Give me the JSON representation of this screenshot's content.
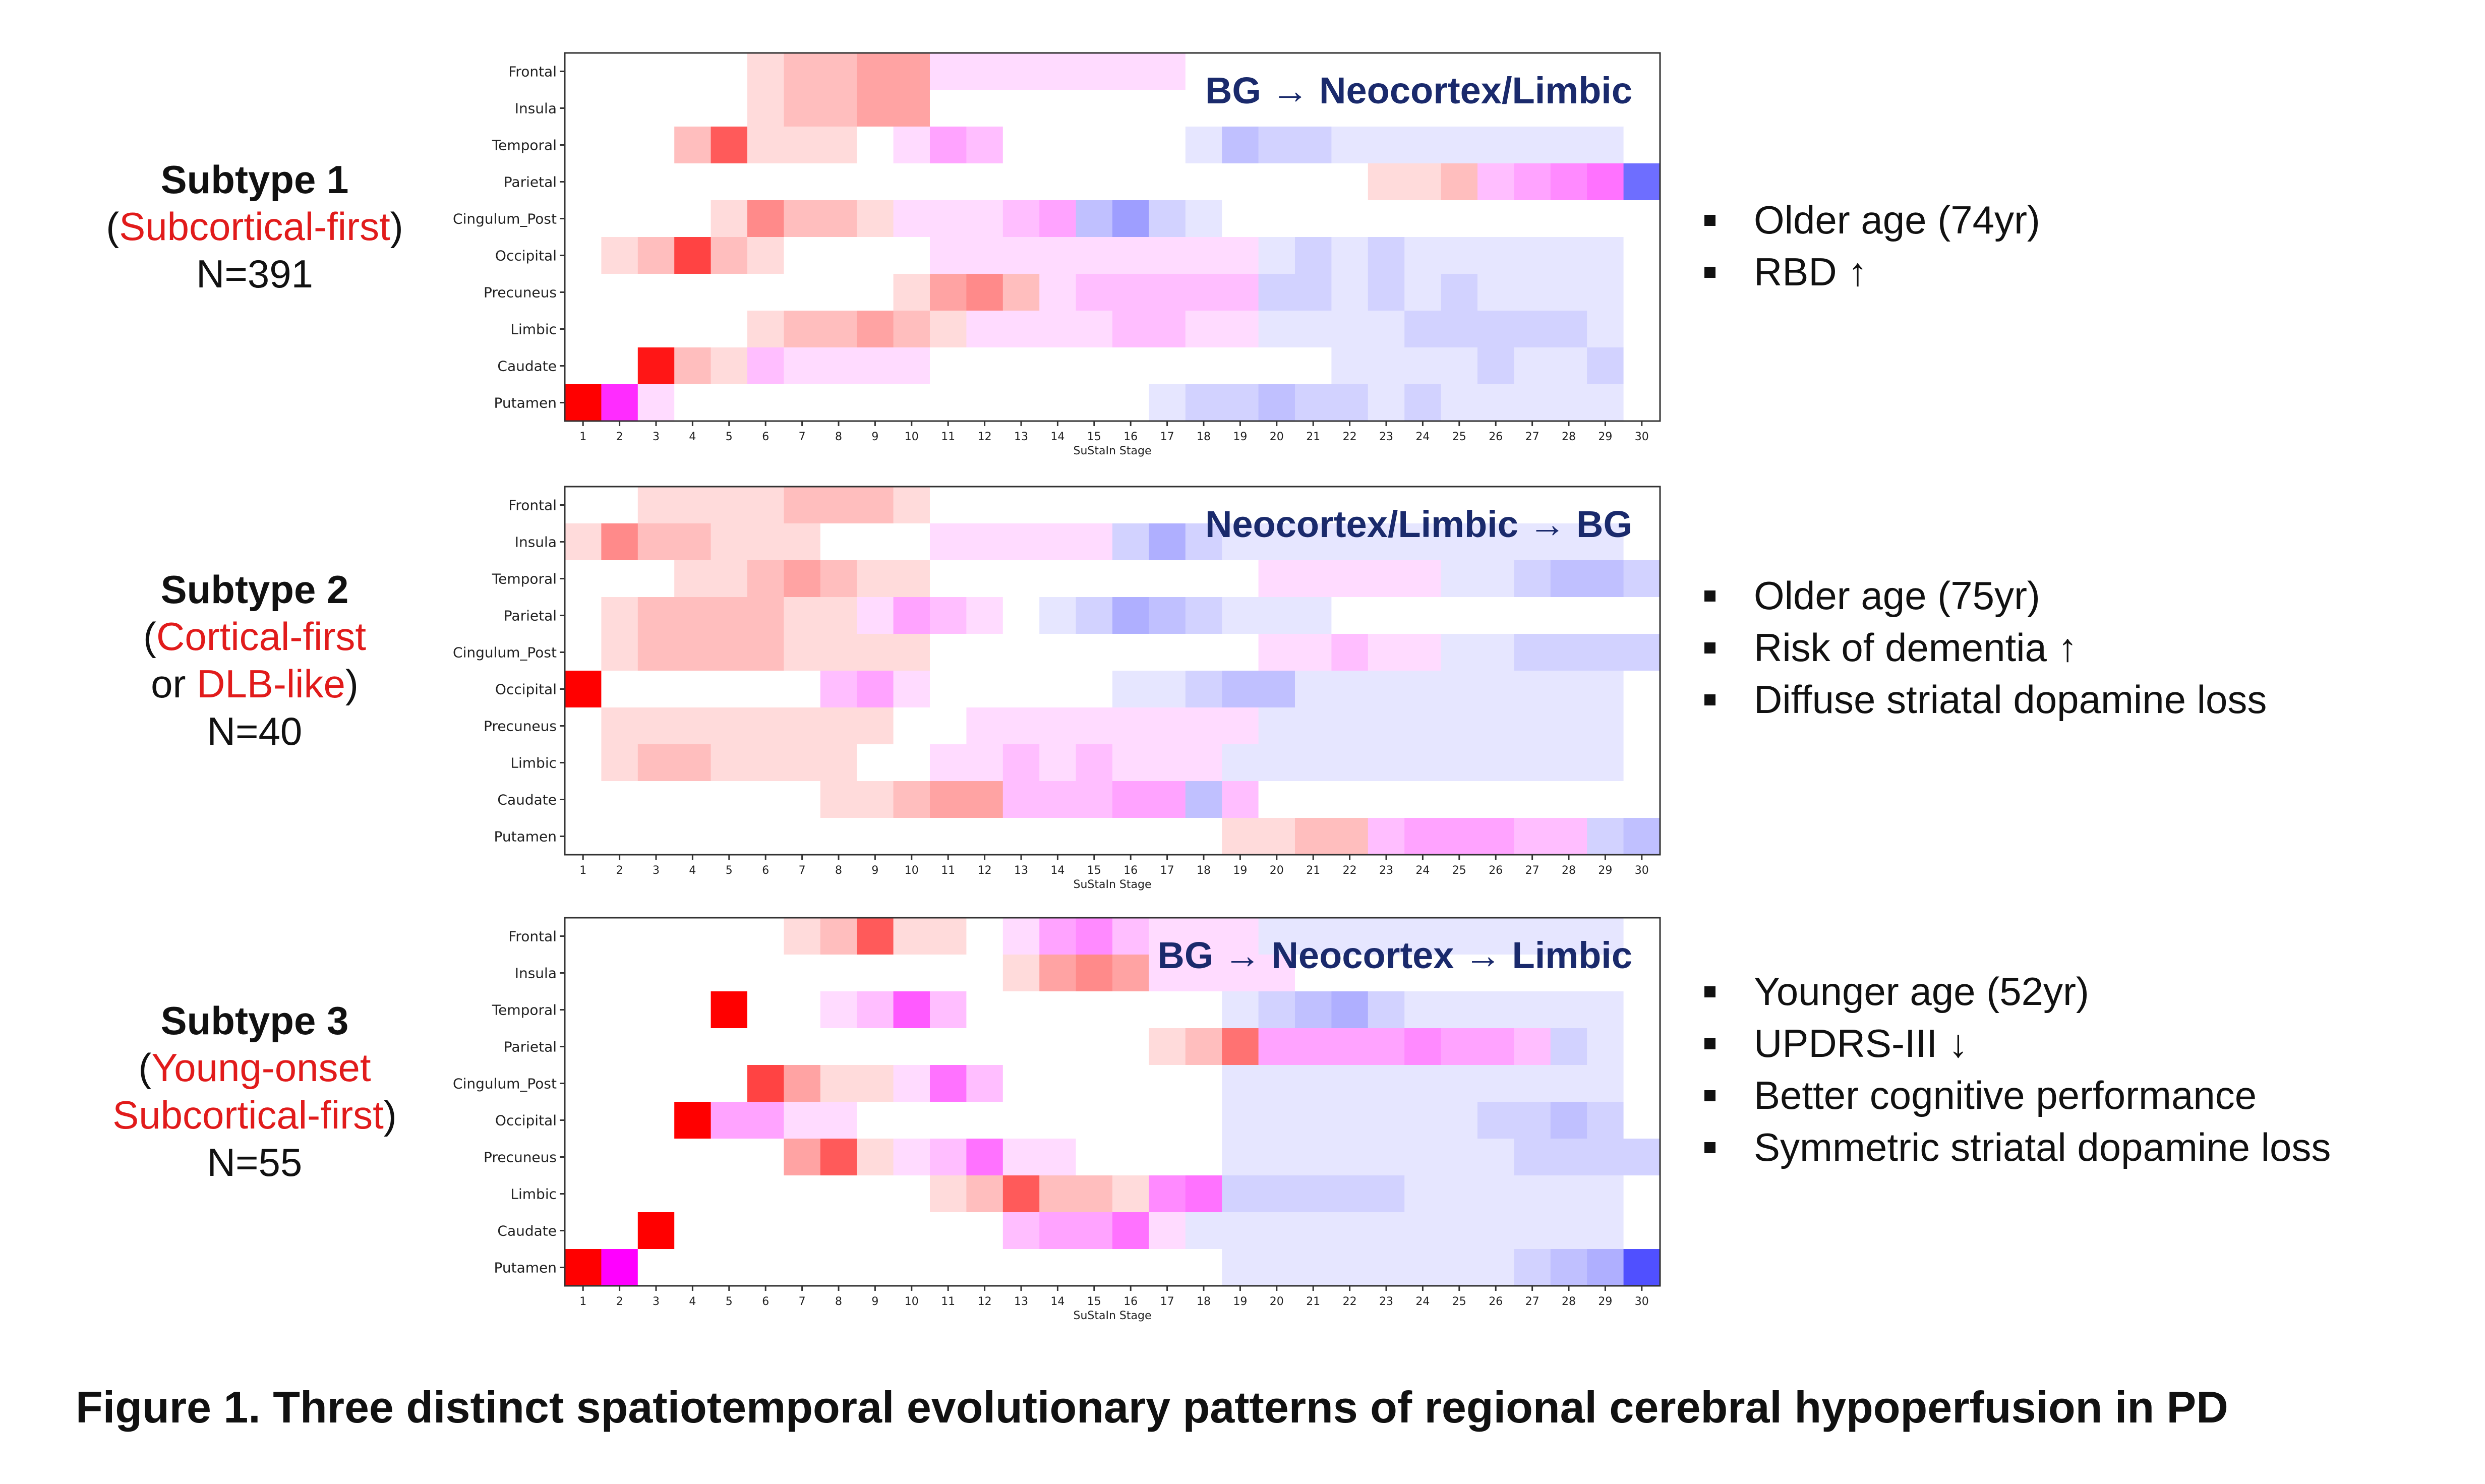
{
  "subtypes": [
    {
      "title": "Subtype 1",
      "desc_parts": [
        {
          "t": "(",
          "red": false
        },
        {
          "t": "Subcortical-first",
          "red": true
        },
        {
          "t": ")",
          "red": false
        }
      ],
      "desc_line2_parts": [],
      "n": "N=391",
      "bullets": [
        "Older age (74yr)",
        "RBD ↑"
      ]
    },
    {
      "title": "Subtype 2",
      "desc_parts": [
        {
          "t": "(",
          "red": false
        },
        {
          "t": "Cortical-first",
          "red": true
        }
      ],
      "desc_line2_parts": [
        {
          "t": "or ",
          "red": false
        },
        {
          "t": "DLB-like",
          "red": true
        },
        {
          "t": ")",
          "red": false
        }
      ],
      "n": "N=40",
      "bullets": [
        "Older age (75yr)",
        "Risk of dementia ↑",
        "Diffuse striatal dopamine loss"
      ]
    },
    {
      "title": "Subtype 3",
      "desc_parts": [
        {
          "t": "(",
          "red": false
        },
        {
          "t": "Young-onset",
          "red": true
        }
      ],
      "desc_line2_parts": [
        {
          "t": "Subcortical-first",
          "red": true
        },
        {
          "t": ")",
          "red": false
        }
      ],
      "n": "N=55",
      "bullets": [
        "Younger age (52yr)",
        "UPDRS-III ↓",
        "Better cognitive performance",
        "Symmetric striatal dopamine loss"
      ]
    }
  ],
  "caption": "Figure 1. Three distinct spatiotemporal evolutionary patterns of regional cerebral hypoperfusion in PD",
  "colors": {
    "red": "#ff0000",
    "magenta": "#ff00ff",
    "blue": "#5050ff",
    "white": "#ffffff",
    "annotation": "#1a2a6c",
    "subtype_red": "#e11b1b"
  },
  "chart_data": [
    {
      "type": "heatmap",
      "title": "BG → Neocortex/Limbic",
      "xlabel": "SuStaIn Stage",
      "ylabel": "",
      "rows": [
        "Frontal",
        "Insula",
        "Temporal",
        "Parietal",
        "Cingulum_Post",
        "Occipital",
        "Precuneus",
        "Limbic",
        "Caudate",
        "Putamen"
      ],
      "stages": [
        "1",
        "2",
        "3",
        "4",
        "5",
        "6",
        "7",
        "8",
        "9",
        "10",
        "11",
        "12",
        "13",
        "14",
        "15",
        "16",
        "17",
        "18",
        "19",
        "20",
        "21",
        "22",
        "23",
        "24",
        "25",
        "26",
        "27",
        "28",
        "29",
        "30"
      ],
      "cells": [
        [
          "W",
          "W",
          "W",
          "W",
          "W",
          "R1",
          "R2",
          "R2",
          "R3",
          "R3",
          "M1",
          "M1",
          "M1",
          "M1",
          "M1",
          "M1",
          "M1",
          "W",
          "W",
          "W",
          "W",
          "W",
          "W",
          "W",
          "W",
          "W",
          "W",
          "W",
          "W",
          "W"
        ],
        [
          "W",
          "W",
          "W",
          "W",
          "W",
          "R1",
          "R2",
          "R2",
          "R3",
          "R3",
          "W",
          "W",
          "W",
          "W",
          "W",
          "W",
          "W",
          "W",
          "W",
          "W",
          "W",
          "W",
          "W",
          "W",
          "W",
          "W",
          "W",
          "W",
          "W",
          "W"
        ],
        [
          "W",
          "W",
          "W",
          "R2",
          "R6",
          "R1",
          "R1",
          "R1",
          "W",
          "M1",
          "M3",
          "M2",
          "W",
          "W",
          "W",
          "W",
          "W",
          "B1",
          "B3",
          "B2",
          "B2",
          "B1",
          "B1",
          "B1",
          "B1",
          "B1",
          "B1",
          "B1",
          "B1",
          "W"
        ],
        [
          "W",
          "W",
          "W",
          "W",
          "W",
          "W",
          "W",
          "W",
          "W",
          "W",
          "W",
          "W",
          "W",
          "W",
          "W",
          "W",
          "W",
          "W",
          "W",
          "W",
          "W",
          "W",
          "R1",
          "R1",
          "R2",
          "M2",
          "M3",
          "M4",
          "M5",
          "B8"
        ],
        [
          "W",
          "W",
          "W",
          "W",
          "R1",
          "R4",
          "R2",
          "R2",
          "R1",
          "M1",
          "M1",
          "M1",
          "M2",
          "M3",
          "B3",
          "B5",
          "B2",
          "B1",
          "W",
          "W",
          "W",
          "W",
          "W",
          "W",
          "W",
          "W",
          "W",
          "W",
          "W",
          "W"
        ],
        [
          "W",
          "R1",
          "R2",
          "R7",
          "R2",
          "R1",
          "W",
          "W",
          "W",
          "W",
          "M1",
          "M1",
          "M1",
          "M1",
          "M1",
          "M1",
          "M1",
          "M1",
          "M1",
          "B1",
          "B2",
          "B1",
          "B2",
          "B1",
          "B1",
          "B1",
          "B1",
          "B1",
          "B1",
          "W"
        ],
        [
          "W",
          "W",
          "W",
          "W",
          "W",
          "W",
          "W",
          "W",
          "W",
          "R1",
          "R3",
          "R4",
          "R2",
          "M1",
          "M2",
          "M2",
          "M2",
          "M2",
          "M2",
          "B2",
          "B2",
          "B1",
          "B2",
          "B1",
          "B2",
          "B1",
          "B1",
          "B1",
          "B1",
          "W"
        ],
        [
          "W",
          "W",
          "W",
          "W",
          "W",
          "R1",
          "R2",
          "R2",
          "R3",
          "R2",
          "R1",
          "M1",
          "M1",
          "M1",
          "M1",
          "M2",
          "M2",
          "M1",
          "M1",
          "B1",
          "B1",
          "B1",
          "B1",
          "B2",
          "B2",
          "B2",
          "B2",
          "B2",
          "B1",
          "W"
        ],
        [
          "W",
          "W",
          "R9",
          "R2",
          "R1",
          "M2",
          "M1",
          "M1",
          "M1",
          "M1",
          "W",
          "W",
          "W",
          "W",
          "W",
          "W",
          "W",
          "W",
          "W",
          "W",
          "W",
          "B1",
          "B1",
          "B1",
          "B1",
          "B2",
          "B1",
          "B1",
          "B2",
          "W"
        ],
        [
          "R10",
          "M8",
          "M1",
          "W",
          "W",
          "W",
          "W",
          "W",
          "W",
          "W",
          "W",
          "W",
          "W",
          "W",
          "W",
          "W",
          "B1",
          "B2",
          "B2",
          "B3",
          "B2",
          "B2",
          "B1",
          "B2",
          "B1",
          "B1",
          "B1",
          "B1",
          "B1",
          "W"
        ]
      ]
    },
    {
      "type": "heatmap",
      "title": "Neocortex/Limbic → BG",
      "xlabel": "SuStaIn Stage",
      "ylabel": "",
      "rows": [
        "Frontal",
        "Insula",
        "Temporal",
        "Parietal",
        "Cingulum_Post",
        "Occipital",
        "Precuneus",
        "Limbic",
        "Caudate",
        "Putamen"
      ],
      "stages": [
        "1",
        "2",
        "3",
        "4",
        "5",
        "6",
        "7",
        "8",
        "9",
        "10",
        "11",
        "12",
        "13",
        "14",
        "15",
        "16",
        "17",
        "18",
        "19",
        "20",
        "21",
        "22",
        "23",
        "24",
        "25",
        "26",
        "27",
        "28",
        "29",
        "30"
      ],
      "cells": [
        [
          "W",
          "W",
          "R1",
          "R1",
          "R1",
          "R1",
          "R2",
          "R2",
          "R2",
          "R1",
          "W",
          "W",
          "W",
          "W",
          "W",
          "W",
          "W",
          "W",
          "W",
          "W",
          "W",
          "W",
          "W",
          "W",
          "W",
          "W",
          "W",
          "W",
          "W",
          "W"
        ],
        [
          "R1",
          "R4",
          "R2",
          "R2",
          "R1",
          "R1",
          "R1",
          "W",
          "W",
          "W",
          "M1",
          "M1",
          "M1",
          "M1",
          "M1",
          "B2",
          "B4",
          "B2",
          "B1",
          "B1",
          "B1",
          "B1",
          "B1",
          "B1",
          "B1",
          "B1",
          "B1",
          "B1",
          "B1",
          "W"
        ],
        [
          "W",
          "W",
          "W",
          "R1",
          "R1",
          "R2",
          "R3",
          "R2",
          "R1",
          "R1",
          "W",
          "W",
          "W",
          "W",
          "W",
          "W",
          "W",
          "W",
          "W",
          "M1",
          "M1",
          "M1",
          "M1",
          "M1",
          "B1",
          "B1",
          "B2",
          "B3",
          "B3",
          "B2"
        ],
        [
          "W",
          "R1",
          "R2",
          "R2",
          "R2",
          "R2",
          "R1",
          "R1",
          "M1",
          "M3",
          "M2",
          "M1",
          "W",
          "B1",
          "B2",
          "B4",
          "B3",
          "B2",
          "B1",
          "B1",
          "B1",
          "W",
          "W",
          "W",
          "W",
          "W",
          "W",
          "W",
          "W",
          "W"
        ],
        [
          "W",
          "R1",
          "R2",
          "R2",
          "R2",
          "R2",
          "R1",
          "R1",
          "R1",
          "R1",
          "W",
          "W",
          "W",
          "W",
          "W",
          "W",
          "W",
          "W",
          "W",
          "M1",
          "M1",
          "M2",
          "M1",
          "M1",
          "B1",
          "B1",
          "B2",
          "B2",
          "B2",
          "B2"
        ],
        [
          "R10",
          "W",
          "W",
          "W",
          "W",
          "W",
          "W",
          "M2",
          "M3",
          "M1",
          "W",
          "W",
          "W",
          "W",
          "W",
          "B1",
          "B1",
          "B2",
          "B3",
          "B3",
          "B1",
          "B1",
          "B1",
          "B1",
          "B1",
          "B1",
          "B1",
          "B1",
          "B1",
          "W"
        ],
        [
          "W",
          "R1",
          "R1",
          "R1",
          "R1",
          "R1",
          "R1",
          "R1",
          "R1",
          "W",
          "W",
          "M1",
          "M1",
          "M1",
          "M1",
          "M1",
          "M1",
          "M1",
          "M1",
          "B1",
          "B1",
          "B1",
          "B1",
          "B1",
          "B1",
          "B1",
          "B1",
          "B1",
          "B1",
          "W"
        ],
        [
          "W",
          "R1",
          "R2",
          "R2",
          "R1",
          "R1",
          "R1",
          "R1",
          "W",
          "W",
          "M1",
          "M1",
          "M2",
          "M1",
          "M2",
          "M1",
          "M1",
          "M1",
          "B1",
          "B1",
          "B1",
          "B1",
          "B1",
          "B1",
          "B1",
          "B1",
          "B1",
          "B1",
          "B1",
          "W"
        ],
        [
          "W",
          "W",
          "W",
          "W",
          "W",
          "W",
          "W",
          "R1",
          "R1",
          "R2",
          "R3",
          "R3",
          "M2",
          "M2",
          "M2",
          "M3",
          "M3",
          "B3",
          "M2",
          "W",
          "W",
          "W",
          "W",
          "W",
          "W",
          "W",
          "W",
          "W",
          "W",
          "W"
        ],
        [
          "W",
          "W",
          "W",
          "W",
          "W",
          "W",
          "W",
          "W",
          "W",
          "W",
          "W",
          "W",
          "W",
          "W",
          "W",
          "W",
          "W",
          "W",
          "R1",
          "R1",
          "R2",
          "R2",
          "M2",
          "M3",
          "M3",
          "M3",
          "M2",
          "M2",
          "B2",
          "B3"
        ]
      ]
    },
    {
      "type": "heatmap",
      "title": "BG → Neocortex → Limbic",
      "xlabel": "SuStaIn Stage",
      "ylabel": "",
      "rows": [
        "Frontal",
        "Insula",
        "Temporal",
        "Parietal",
        "Cingulum_Post",
        "Occipital",
        "Precuneus",
        "Limbic",
        "Caudate",
        "Putamen"
      ],
      "stages": [
        "1",
        "2",
        "3",
        "4",
        "5",
        "6",
        "7",
        "8",
        "9",
        "10",
        "11",
        "12",
        "13",
        "14",
        "15",
        "16",
        "17",
        "18",
        "19",
        "20",
        "21",
        "22",
        "23",
        "24",
        "25",
        "26",
        "27",
        "28",
        "29",
        "30"
      ],
      "cells": [
        [
          "W",
          "W",
          "W",
          "W",
          "W",
          "W",
          "R1",
          "R2",
          "R6",
          "R1",
          "R1",
          "W",
          "M1",
          "M3",
          "M4",
          "M2",
          "M1",
          "M1",
          "M1",
          "B1",
          "B1",
          "B1",
          "B1",
          "B1",
          "B1",
          "B1",
          "B1",
          "B1",
          "B1",
          "W"
        ],
        [
          "W",
          "W",
          "W",
          "W",
          "W",
          "W",
          "W",
          "W",
          "W",
          "W",
          "W",
          "W",
          "R1",
          "R3",
          "R4",
          "R3",
          "M1",
          "M1",
          "M1",
          "M1",
          "W",
          "W",
          "W",
          "W",
          "W",
          "W",
          "W",
          "W",
          "W",
          "W"
        ],
        [
          "W",
          "W",
          "W",
          "W",
          "R10",
          "W",
          "W",
          "M1",
          "M2",
          "M6",
          "M2",
          "W",
          "W",
          "W",
          "W",
          "W",
          "W",
          "W",
          "B1",
          "B2",
          "B3",
          "B4",
          "B2",
          "B1",
          "B1",
          "B1",
          "B1",
          "B1",
          "B1",
          "W"
        ],
        [
          "W",
          "W",
          "W",
          "W",
          "W",
          "W",
          "W",
          "W",
          "W",
          "W",
          "W",
          "W",
          "W",
          "W",
          "W",
          "W",
          "R1",
          "R2",
          "R5",
          "M3",
          "M3",
          "M3",
          "M3",
          "M4",
          "M3",
          "M3",
          "M2",
          "B2",
          "B1",
          "W"
        ],
        [
          "W",
          "W",
          "W",
          "W",
          "W",
          "R7",
          "R3",
          "R1",
          "R1",
          "M1",
          "M5",
          "M2",
          "W",
          "W",
          "W",
          "W",
          "W",
          "W",
          "B1",
          "B1",
          "B1",
          "B1",
          "B1",
          "B1",
          "B1",
          "B1",
          "B1",
          "B1",
          "B1",
          "W"
        ],
        [
          "W",
          "W",
          "W",
          "R10",
          "M3",
          "M3",
          "M1",
          "M1",
          "W",
          "W",
          "W",
          "W",
          "W",
          "W",
          "W",
          "W",
          "W",
          "W",
          "B1",
          "B1",
          "B1",
          "B1",
          "B1",
          "B1",
          "B1",
          "B2",
          "B2",
          "B3",
          "B2",
          "W"
        ],
        [
          "W",
          "W",
          "W",
          "W",
          "W",
          "W",
          "R3",
          "R6",
          "R1",
          "M1",
          "M2",
          "M5",
          "M1",
          "M1",
          "W",
          "W",
          "W",
          "W",
          "B1",
          "B1",
          "B1",
          "B1",
          "B1",
          "B1",
          "B1",
          "B1",
          "B2",
          "B2",
          "B2",
          "B2"
        ],
        [
          "W",
          "W",
          "W",
          "W",
          "W",
          "W",
          "W",
          "W",
          "W",
          "W",
          "R1",
          "R2",
          "R6",
          "R2",
          "R2",
          "R1",
          "M4",
          "M5",
          "B2",
          "B2",
          "B2",
          "B2",
          "B2",
          "B1",
          "B1",
          "B1",
          "B1",
          "B1",
          "B1",
          "W"
        ],
        [
          "W",
          "W",
          "R10",
          "W",
          "W",
          "W",
          "W",
          "W",
          "W",
          "W",
          "W",
          "W",
          "M2",
          "M3",
          "M3",
          "M5",
          "M1",
          "B1",
          "B1",
          "B1",
          "B1",
          "B1",
          "B1",
          "B1",
          "B1",
          "B1",
          "B1",
          "B1",
          "B1",
          "W"
        ],
        [
          "R10",
          "M10",
          "W",
          "W",
          "W",
          "W",
          "W",
          "W",
          "W",
          "W",
          "W",
          "W",
          "W",
          "W",
          "W",
          "W",
          "W",
          "W",
          "B1",
          "B1",
          "B1",
          "B1",
          "B1",
          "B1",
          "B1",
          "B1",
          "B2",
          "B3",
          "B4",
          "B10"
        ]
      ]
    }
  ]
}
